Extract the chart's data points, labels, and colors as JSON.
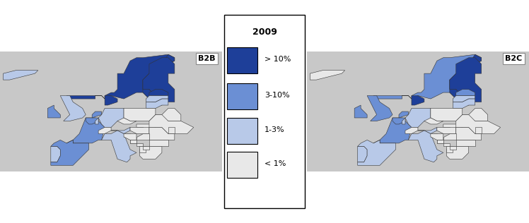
{
  "title_left": "B2B",
  "title_right": "B2C",
  "legend_title": "2009",
  "legend_items": [
    "> 10%",
    "3-10%",
    "1-3%",
    "< 1%"
  ],
  "legend_colors": [
    "#1e3f99",
    "#6b8fd4",
    "#b8c9e8",
    "#e8e8e8"
  ],
  "background_color": "#c8c8c8",
  "border_color": "#c8c8c8",
  "b2b_categories": {
    "FI": ">10",
    "SE": ">10",
    "NO": ">10",
    "DK": ">10",
    "EE": ">10",
    "IE": "3-10",
    "ES": "3-10",
    "NL": "3-10",
    "FR": "3-10",
    "BE": "3-10",
    "LU": "1-3",
    "DE": "1-3",
    "AT": "1-3",
    "IT": "1-3",
    "PT": "1-3",
    "GB": "1-3",
    "LV": "1-3",
    "LT": "1-3",
    "PL": "<1",
    "CZ": "<1",
    "SK": "<1",
    "HU": "<1",
    "RO": "<1",
    "BG": "<1",
    "HR": "<1",
    "SI": "<1",
    "GR": "<1",
    "CH": "<1",
    "IS": "1-3",
    "MT": "<1",
    "CY": "<1",
    "RS": "<1",
    "BA": "<1",
    "AL": "<1",
    "MK": "<1",
    "ME": "<1",
    "BY": "<1",
    "UA": "<1",
    "MD": "<1"
  },
  "b2c_categories": {
    "FI": ">10",
    "SE": ">10",
    "NO": "3-10",
    "DK": ">10",
    "EE": "3-10",
    "IE": "3-10",
    "ES": "1-3",
    "NL": "3-10",
    "FR": "3-10",
    "BE": "3-10",
    "LU": "1-3",
    "DE": "1-3",
    "AT": "1-3",
    "IT": "1-3",
    "PT": "1-3",
    "GB": "3-10",
    "LV": "1-3",
    "LT": "1-3",
    "PL": "<1",
    "CZ": "<1",
    "SK": "<1",
    "HU": "<1",
    "RO": "<1",
    "BG": "<1",
    "HR": "<1",
    "SI": "<1",
    "GR": "<1",
    "CH": "<1",
    "IS": "<1",
    "MT": "<1",
    "CY": "<1",
    "RS": "<1",
    "BA": "<1",
    "AL": "<1",
    "MK": "<1",
    "ME": "<1",
    "BY": "<1",
    "UA": "<1",
    "MD": "<1"
  },
  "color_map": {
    ">10": "#1e3f99",
    "3-10": "#6b8fd4",
    "1-3": "#b8c9e8",
    "<1": "#e8e8e8"
  }
}
